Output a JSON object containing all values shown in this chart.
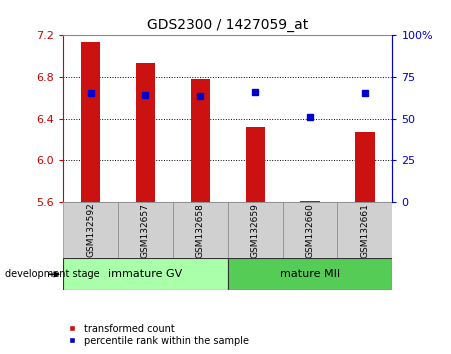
{
  "title": "GDS2300 / 1427059_at",
  "categories": [
    "GSM132592",
    "GSM132657",
    "GSM132658",
    "GSM132659",
    "GSM132660",
    "GSM132661"
  ],
  "bar_values": [
    7.14,
    6.93,
    6.78,
    6.32,
    5.61,
    6.27
  ],
  "bar_bottom": 5.6,
  "percentile_values": [
    6.65,
    6.63,
    6.62,
    6.66,
    6.42,
    6.65
  ],
  "bar_color": "#cc1111",
  "percentile_color": "#0000cc",
  "ylim": [
    5.6,
    7.2
  ],
  "right_ylim": [
    0,
    100
  ],
  "right_yticks": [
    0,
    25,
    50,
    75,
    100
  ],
  "right_yticklabels": [
    "0",
    "25",
    "50",
    "75",
    "100%"
  ],
  "left_yticks": [
    5.6,
    6.0,
    6.4,
    6.8,
    7.2
  ],
  "groups": [
    {
      "label": "immature GV",
      "indices": [
        0,
        1,
        2
      ],
      "color": "#aaffaa"
    },
    {
      "label": "mature MII",
      "indices": [
        3,
        4,
        5
      ],
      "color": "#55cc55"
    }
  ],
  "group_label_prefix": "development stage",
  "legend_items": [
    {
      "label": "transformed count",
      "color": "#cc1111"
    },
    {
      "label": "percentile rank within the sample",
      "color": "#0000cc"
    }
  ],
  "background_color": "#ffffff",
  "tick_color_left": "#cc0000",
  "tick_color_right": "#0000cc",
  "xlabel_area_color": "#d0d0d0",
  "bar_width": 0.35,
  "figsize": [
    4.51,
    3.54
  ],
  "dpi": 100
}
